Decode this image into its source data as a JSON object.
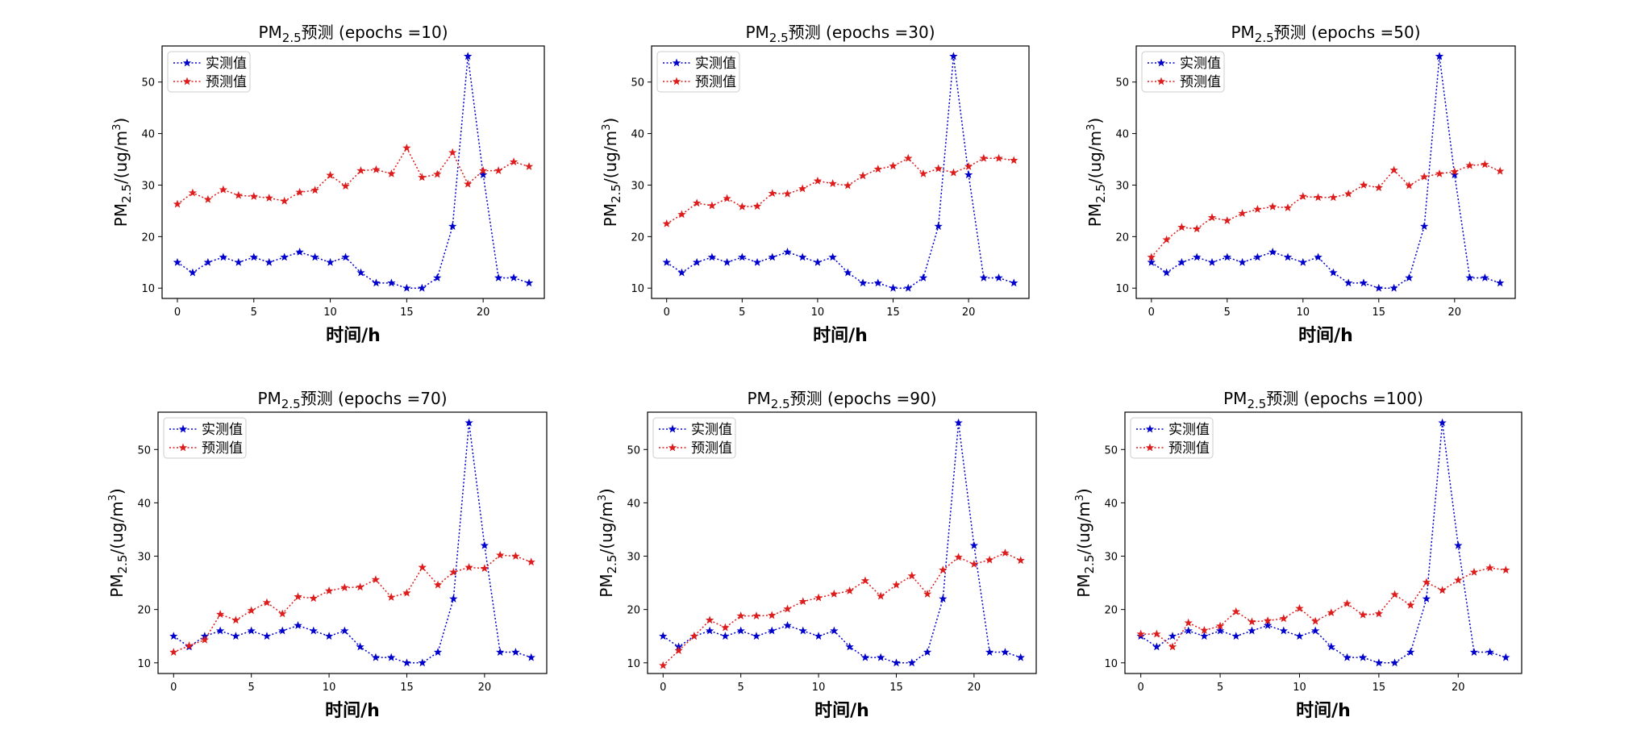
{
  "figure": {
    "background": "#ffffff",
    "colors": {
      "actual": "#0000cc",
      "predicted": "#dd1c1c"
    }
  },
  "chart_data": [
    {
      "type": "line",
      "title": "PM2.5预测 (epochs =10)",
      "title_main": "PM",
      "title_sub": "2.5",
      "title_rest": "预测 (epochs =10)",
      "xlabel": "时间/h",
      "ylabel": "PM2.5/(ug/m3)",
      "ylabel_main": "PM",
      "ylabel_sub": "2.5",
      "ylabel_mid": "/(ug/m",
      "ylabel_sup": "3",
      "ylabel_end": ")",
      "xlim": [
        -1,
        24
      ],
      "ylim": [
        8,
        57
      ],
      "xticks": [
        0,
        5,
        10,
        15,
        20
      ],
      "yticks": [
        10,
        20,
        30,
        40,
        50
      ],
      "legend_position": "upper-left",
      "x": [
        0,
        1,
        2,
        3,
        4,
        5,
        6,
        7,
        8,
        9,
        10,
        11,
        12,
        13,
        14,
        15,
        16,
        17,
        18,
        19,
        20,
        21,
        22,
        23
      ],
      "series": [
        {
          "name": "实测值",
          "marker": "★",
          "values": [
            15,
            13,
            15,
            16,
            15,
            16,
            15,
            16,
            17,
            16,
            15,
            16,
            13,
            11,
            11,
            10,
            10,
            12,
            22,
            55,
            32,
            12,
            12,
            11
          ]
        },
        {
          "name": "预测值",
          "marker": "★",
          "values": [
            26.3,
            28.5,
            27.2,
            29.1,
            28.0,
            27.8,
            27.5,
            26.9,
            28.6,
            29.0,
            31.9,
            29.8,
            32.8,
            33.0,
            32.2,
            37.2,
            31.5,
            32.1,
            36.3,
            30.2,
            32.8,
            32.8,
            34.5,
            33.6
          ]
        }
      ]
    },
    {
      "type": "line",
      "title": "PM2.5预测 (epochs =30)",
      "title_main": "PM",
      "title_sub": "2.5",
      "title_rest": "预测 (epochs =30)",
      "xlabel": "时间/h",
      "ylabel": "PM2.5/(ug/m3)",
      "ylabel_main": "PM",
      "ylabel_sub": "2.5",
      "ylabel_mid": "/(ug/m",
      "ylabel_sup": "3",
      "ylabel_end": ")",
      "xlim": [
        -1,
        24
      ],
      "ylim": [
        8,
        57
      ],
      "xticks": [
        0,
        5,
        10,
        15,
        20
      ],
      "yticks": [
        10,
        20,
        30,
        40,
        50
      ],
      "legend_position": "upper-left",
      "x": [
        0,
        1,
        2,
        3,
        4,
        5,
        6,
        7,
        8,
        9,
        10,
        11,
        12,
        13,
        14,
        15,
        16,
        17,
        18,
        19,
        20,
        21,
        22,
        23
      ],
      "series": [
        {
          "name": "实测值",
          "marker": "★",
          "values": [
            15,
            13,
            15,
            16,
            15,
            16,
            15,
            16,
            17,
            16,
            15,
            16,
            13,
            11,
            11,
            10,
            10,
            12,
            22,
            55,
            32,
            12,
            12,
            11
          ]
        },
        {
          "name": "预测值",
          "marker": "★",
          "values": [
            22.5,
            24.3,
            26.5,
            26.0,
            27.4,
            25.8,
            25.9,
            28.4,
            28.3,
            29.3,
            30.8,
            30.3,
            29.9,
            31.8,
            33.1,
            33.7,
            35.2,
            32.2,
            33.2,
            32.4,
            33.6,
            35.2,
            35.2,
            34.8
          ]
        }
      ]
    },
    {
      "type": "line",
      "title": "PM2.5预测 (epochs =50)",
      "title_main": "PM",
      "title_sub": "2.5",
      "title_rest": "预测 (epochs =50)",
      "xlabel": "时间/h",
      "ylabel": "PM2.5/(ug/m3)",
      "ylabel_main": "PM",
      "ylabel_sub": "2.5",
      "ylabel_mid": "/(ug/m",
      "ylabel_sup": "3",
      "ylabel_end": ")",
      "xlim": [
        -1,
        24
      ],
      "ylim": [
        8,
        57
      ],
      "xticks": [
        0,
        5,
        10,
        15,
        20
      ],
      "yticks": [
        10,
        20,
        30,
        40,
        50
      ],
      "legend_position": "upper-left",
      "x": [
        0,
        1,
        2,
        3,
        4,
        5,
        6,
        7,
        8,
        9,
        10,
        11,
        12,
        13,
        14,
        15,
        16,
        17,
        18,
        19,
        20,
        21,
        22,
        23
      ],
      "series": [
        {
          "name": "实测值",
          "marker": "★",
          "values": [
            15,
            13,
            15,
            16,
            15,
            16,
            15,
            16,
            17,
            16,
            15,
            16,
            13,
            11,
            11,
            10,
            10,
            12,
            22,
            55,
            32,
            12,
            12,
            11
          ]
        },
        {
          "name": "预测值",
          "marker": "★",
          "values": [
            16.0,
            19.4,
            21.8,
            21.5,
            23.7,
            23.1,
            24.5,
            25.3,
            25.8,
            25.6,
            27.8,
            27.6,
            27.6,
            28.3,
            30.0,
            29.5,
            32.9,
            29.9,
            31.6,
            32.2,
            32.6,
            33.8,
            34.0,
            32.7
          ]
        }
      ]
    },
    {
      "type": "line",
      "title": "PM2.5预测 (epochs =70)",
      "title_main": "PM",
      "title_sub": "2.5",
      "title_rest": "预测 (epochs =70)",
      "xlabel": "时间/h",
      "ylabel": "PM2.5/(ug/m3)",
      "ylabel_main": "PM",
      "ylabel_sub": "2.5",
      "ylabel_mid": "/(ug/m",
      "ylabel_sup": "3",
      "ylabel_end": ")",
      "xlim": [
        -1,
        24
      ],
      "ylim": [
        8,
        57
      ],
      "xticks": [
        0,
        5,
        10,
        15,
        20
      ],
      "yticks": [
        10,
        20,
        30,
        40,
        50
      ],
      "legend_position": "upper-left",
      "x": [
        0,
        1,
        2,
        3,
        4,
        5,
        6,
        7,
        8,
        9,
        10,
        11,
        12,
        13,
        14,
        15,
        16,
        17,
        18,
        19,
        20,
        21,
        22,
        23
      ],
      "series": [
        {
          "name": "实测值",
          "marker": "★",
          "values": [
            15,
            13,
            15,
            16,
            15,
            16,
            15,
            16,
            17,
            16,
            15,
            16,
            13,
            11,
            11,
            10,
            10,
            12,
            22,
            55,
            32,
            12,
            12,
            11
          ]
        },
        {
          "name": "预测值",
          "marker": "★",
          "values": [
            12.0,
            13.2,
            14.3,
            19.1,
            18.0,
            19.8,
            21.3,
            19.2,
            22.4,
            22.1,
            23.5,
            24.1,
            24.2,
            25.6,
            22.3,
            23.1,
            27.9,
            24.6,
            27.0,
            27.9,
            27.7,
            30.2,
            30.0,
            28.9
          ]
        }
      ]
    },
    {
      "type": "line",
      "title": "PM2.5预测 (epochs =90)",
      "title_main": "PM",
      "title_sub": "2.5",
      "title_rest": "预测 (epochs =90)",
      "xlabel": "时间/h",
      "ylabel": "PM2.5/(ug/m3)",
      "ylabel_main": "PM",
      "ylabel_sub": "2.5",
      "ylabel_mid": "/(ug/m",
      "ylabel_sup": "3",
      "ylabel_end": ")",
      "xlim": [
        -1,
        24
      ],
      "ylim": [
        8,
        57
      ],
      "xticks": [
        0,
        5,
        10,
        15,
        20
      ],
      "yticks": [
        10,
        20,
        30,
        40,
        50
      ],
      "legend_position": "upper-left",
      "x": [
        0,
        1,
        2,
        3,
        4,
        5,
        6,
        7,
        8,
        9,
        10,
        11,
        12,
        13,
        14,
        15,
        16,
        17,
        18,
        19,
        20,
        21,
        22,
        23
      ],
      "series": [
        {
          "name": "实测值",
          "marker": "★",
          "values": [
            15,
            13,
            15,
            16,
            15,
            16,
            15,
            16,
            17,
            16,
            15,
            16,
            13,
            11,
            11,
            10,
            10,
            12,
            22,
            55,
            32,
            12,
            12,
            11
          ]
        },
        {
          "name": "预测值",
          "marker": "★",
          "values": [
            9.5,
            12.3,
            15.0,
            18.0,
            16.6,
            18.8,
            18.8,
            18.9,
            20.1,
            21.5,
            22.2,
            22.9,
            23.5,
            25.4,
            22.5,
            24.6,
            26.3,
            22.9,
            27.4,
            29.8,
            28.5,
            29.3,
            30.6,
            29.2
          ]
        }
      ]
    },
    {
      "type": "line",
      "title": "PM2.5预测 (epochs =100)",
      "title_main": "PM",
      "title_sub": "2.5",
      "title_rest": "预测 (epochs =100)",
      "xlabel": "时间/h",
      "ylabel": "PM2.5/(ug/m3)",
      "ylabel_main": "PM",
      "ylabel_sub": "2.5",
      "ylabel_mid": "/(ug/m",
      "ylabel_sup": "3",
      "ylabel_end": ")",
      "xlim": [
        -1,
        24
      ],
      "ylim": [
        8,
        57
      ],
      "xticks": [
        0,
        5,
        10,
        15,
        20
      ],
      "yticks": [
        10,
        20,
        30,
        40,
        50
      ],
      "legend_position": "upper-left",
      "x": [
        0,
        1,
        2,
        3,
        4,
        5,
        6,
        7,
        8,
        9,
        10,
        11,
        12,
        13,
        14,
        15,
        16,
        17,
        18,
        19,
        20,
        21,
        22,
        23
      ],
      "series": [
        {
          "name": "实测值",
          "marker": "★",
          "values": [
            15,
            13,
            15,
            16,
            15,
            16,
            15,
            16,
            17,
            16,
            15,
            16,
            13,
            11,
            11,
            10,
            10,
            12,
            22,
            55,
            32,
            12,
            12,
            11
          ]
        },
        {
          "name": "预测值",
          "marker": "★",
          "values": [
            15.4,
            15.4,
            13.0,
            17.5,
            16.1,
            16.9,
            19.6,
            17.7,
            17.9,
            18.3,
            20.2,
            17.8,
            19.4,
            21.1,
            19.0,
            19.2,
            22.8,
            20.8,
            25.1,
            23.6,
            25.5,
            27.0,
            27.8,
            27.4
          ]
        }
      ]
    }
  ]
}
